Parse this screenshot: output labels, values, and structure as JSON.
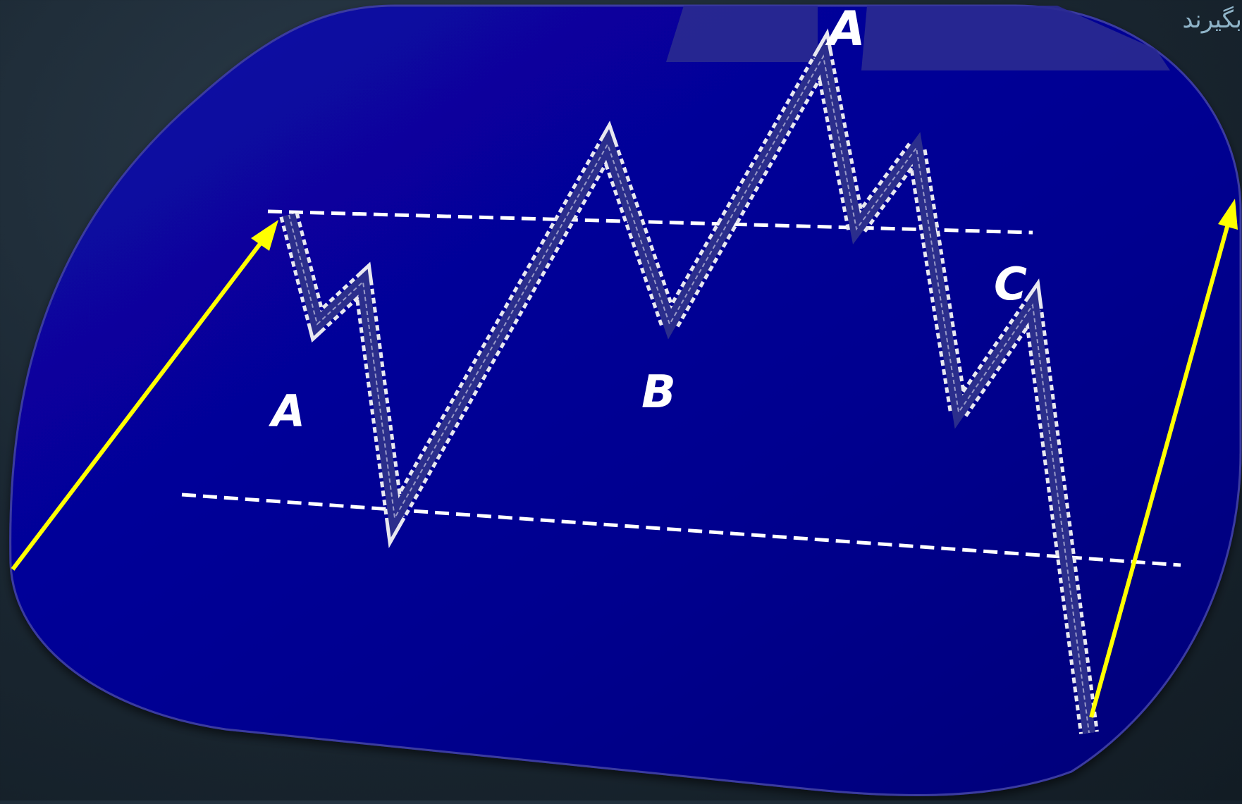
{
  "slide": {
    "corner_text": "بگیرند"
  },
  "diagram": {
    "labels": {
      "a_left": "A",
      "a_top": "A",
      "b": "B",
      "c": "C"
    },
    "colors": {
      "panel": "#03008f",
      "panel_light": "#0a0aa6",
      "wave_fill": "#2b2e8c",
      "wave_edge": "#e8e8f0",
      "arrow": "#ffff00",
      "dashed_line": "#ffffff"
    }
  }
}
